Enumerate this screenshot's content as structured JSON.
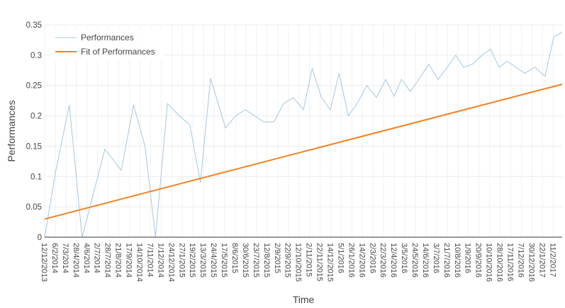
{
  "chart_data": {
    "type": "line",
    "title": "",
    "xlabel": "Time",
    "ylabel": "Performances",
    "ylim": [
      0,
      0.35
    ],
    "yticks": [
      "0",
      "0.05",
      "0.1",
      "0.15",
      "0.2",
      "0.25",
      "0.3",
      "0.35"
    ],
    "xlim": [
      "2013-12-12",
      "2017-03-02"
    ],
    "x_tick_labels": [
      "12/12/2013",
      "6/2/2014",
      "7/3/2014",
      "28/4/2014",
      "4/6/2014",
      "2/7/2014",
      "28/7/2014",
      "21/8/2014",
      "17/9/2014",
      "14/10/2014",
      "7/11/2014",
      "1/12/2014",
      "24/12/2014",
      "27/1/2015",
      "19/2/2015",
      "13/3/2015",
      "24/4/2015",
      "17/5/2015",
      "8/6/2015",
      "30/6/2015",
      "23/7/2015",
      "12/8/2015",
      "2/9/2015",
      "22/9/2015",
      "12/10/2015",
      "2/11/2015",
      "22/11/2015",
      "14/12/2015",
      "5/1/2016",
      "26/1/2016",
      "14/2/2016",
      "2/3/2016",
      "22/3/2016",
      "12/4/2016",
      "3/5/2016",
      "24/5/2016",
      "14/6/2016",
      "3/7/2016",
      "21/7/2016",
      "10/8/2016",
      "1/9/2016",
      "20/9/2016",
      "10/10/2016",
      "28/10/2016",
      "17/11/2016",
      "7/12/2016",
      "30/12/2016",
      "22/1/2017",
      "11/2/2017"
    ],
    "grid": true,
    "legend_position": "top-left",
    "series": [
      {
        "name": "Performances",
        "color": "#a6c8e0",
        "x": [
          "2013-12-12",
          "2014-01-06",
          "2014-02-06",
          "2014-03-07",
          "2014-04-28",
          "2014-06-04",
          "2014-07-02",
          "2014-07-28",
          "2014-08-21",
          "2014-09-17",
          "2014-10-14",
          "2014-11-07",
          "2014-12-01",
          "2014-12-24",
          "2015-01-27",
          "2015-02-19",
          "2015-03-13",
          "2015-04-24",
          "2015-05-17",
          "2015-06-08",
          "2015-06-30",
          "2015-07-23",
          "2015-08-12",
          "2015-09-02",
          "2015-09-22",
          "2015-10-12",
          "2015-11-02",
          "2015-11-22",
          "2015-12-14",
          "2016-01-05",
          "2016-01-26",
          "2016-02-14",
          "2016-03-02",
          "2016-03-22",
          "2016-04-12",
          "2016-05-03",
          "2016-05-24",
          "2016-06-14",
          "2016-07-03",
          "2016-07-21",
          "2016-08-10",
          "2016-09-01",
          "2016-09-20",
          "2016-10-10",
          "2016-10-28",
          "2016-11-17",
          "2016-12-07",
          "2016-12-30",
          "2017-01-22",
          "2017-02-11",
          "2017-03-02"
        ],
        "y": [
          0.0,
          0.108,
          0.218,
          0.0,
          0.145,
          0.11,
          0.218,
          0.15,
          0.0,
          0.22,
          0.2,
          0.185,
          0.09,
          0.262,
          0.18,
          0.2,
          0.21,
          0.19,
          0.19,
          0.22,
          0.23,
          0.21,
          0.278,
          0.23,
          0.21,
          0.27,
          0.2,
          0.22,
          0.25,
          0.23,
          0.26,
          0.232,
          0.26,
          0.24,
          0.262,
          0.285,
          0.26,
          0.28,
          0.3,
          0.28,
          0.285,
          0.3,
          0.31,
          0.28,
          0.29,
          0.28,
          0.27,
          0.28,
          0.265,
          0.33,
          0.338
        ]
      },
      {
        "name": "Fit of Performances",
        "color": "#f58220",
        "x": [
          "2013-12-12",
          "2017-03-02"
        ],
        "y": [
          0.03,
          0.252
        ]
      }
    ]
  }
}
